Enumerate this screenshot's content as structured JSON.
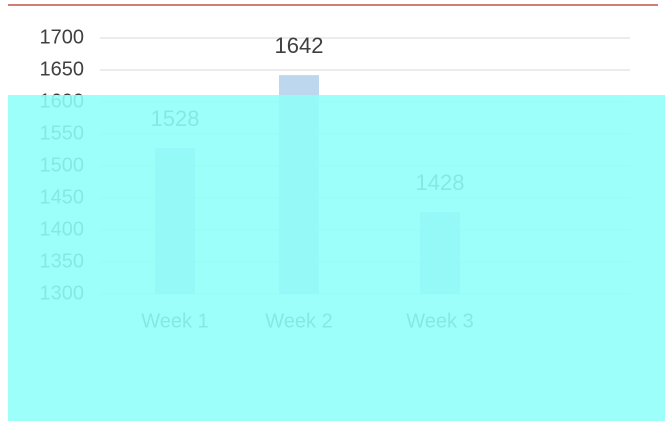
{
  "chart_data": {
    "type": "bar",
    "categories": [
      "Week 1",
      "Week 2",
      "Week 3"
    ],
    "values": [
      1528,
      1642,
      1428
    ],
    "color": "#bdd7ee",
    "ylim": [
      1300,
      1700
    ],
    "yticks": [
      1300,
      1350,
      1400,
      1450,
      1500,
      1550,
      1600,
      1650,
      1700
    ],
    "grid": true
  }
}
